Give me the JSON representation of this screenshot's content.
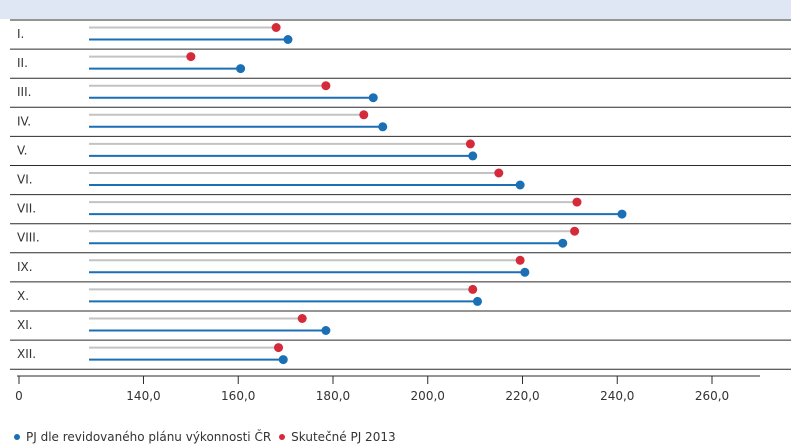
{
  "chart_data": {
    "type": "dumbbell",
    "categories": [
      "I.",
      "II.",
      "III.",
      "IV.",
      "V.",
      "VI.",
      "VII.",
      "VIII.",
      "IX.",
      "X.",
      "XI.",
      "XII."
    ],
    "series": [
      {
        "name": "PJ dle revidovaného plánu výkonnosti ČR",
        "values": [
          170.5,
          160.5,
          188.5,
          190.5,
          209.5,
          219.5,
          241.0,
          228.5,
          220.5,
          210.5,
          178.5,
          169.5
        ]
      },
      {
        "name": "Skutečné PJ 2013",
        "values": [
          168.0,
          150.0,
          178.5,
          186.5,
          209.0,
          215.0,
          231.5,
          231.0,
          219.5,
          209.5,
          173.5,
          168.5
        ]
      }
    ],
    "x_ticks": [
      "0",
      "140,0",
      "160,0",
      "180,0",
      "200,0",
      "220,0",
      "240,0",
      "260,0"
    ],
    "x_tick_values": [
      null,
      140,
      160,
      180,
      200,
      220,
      240,
      260
    ],
    "xlim": [
      128.5,
      260
    ],
    "xlabel": "",
    "ylabel": "",
    "colors": {
      "planned": "#1a6fb5",
      "actual": "#d42a3a",
      "actual_bar": "#c3c3c3"
    },
    "legend_position": "bottom-left"
  }
}
